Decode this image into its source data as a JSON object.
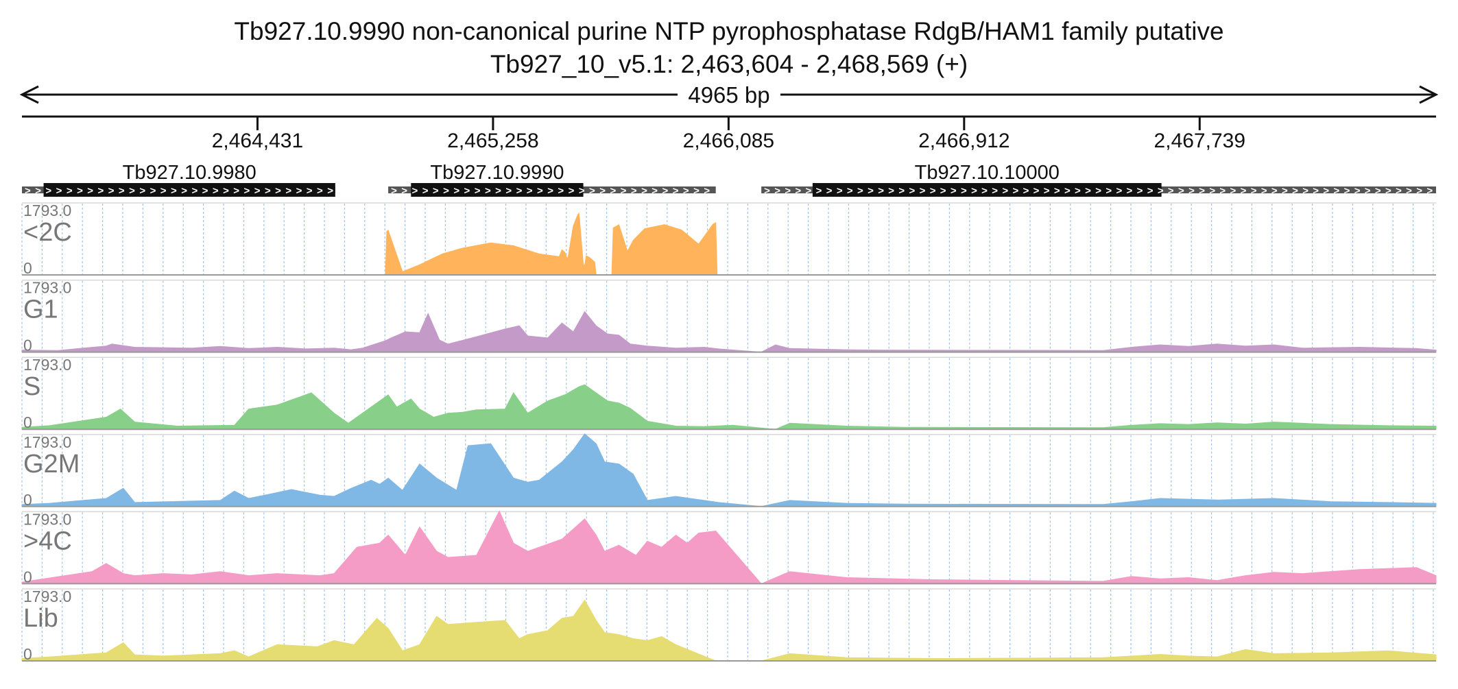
{
  "header": {
    "title": "Tb927.10.9990  non-canonical purine NTP pyrophosphatase  RdgB/HAM1 family  putative",
    "location": "Tb927_10_v5.1: 2,463,604 - 2,468,569 (+)",
    "span_label": "4965 bp"
  },
  "chart_data": {
    "type": "area",
    "title": "Tb927.10.9990  non-canonical purine NTP pyrophosphatase  RdgB/HAM1 family  putative",
    "subtitle": "Tb927_10_v5.1: 2,463,604 - 2,468,569 (+)",
    "x_range": [
      2463604,
      2468569
    ],
    "x_ticks": [
      2464431,
      2465258,
      2466085,
      2466912,
      2467739
    ],
    "x_tick_labels": [
      "2,464,431",
      "2,465,258",
      "2,466,085",
      "2,466,912",
      "2,467,739"
    ],
    "y_range": [
      0,
      1793.0
    ],
    "y_max_label": "1793.0",
    "y_min_label": "0",
    "genes": [
      {
        "name": "Tb927.10.9980",
        "start": 2463604,
        "end": 2464704,
        "cds_start": 2463680,
        "cds_end": 2464704,
        "strand": "+"
      },
      {
        "name": "Tb927.10.9990",
        "start": 2464890,
        "end": 2466040,
        "cds_start": 2464970,
        "cds_end": 2465575,
        "strand": "+"
      },
      {
        "name": "Tb927.10.10000",
        "start": 2466200,
        "end": 2468569,
        "cds_start": 2466380,
        "cds_end": 2467605,
        "strand": "+"
      }
    ],
    "series": [
      {
        "name": "<2C",
        "color": "#ffb45c",
        "x": [
          2463604,
          2464880,
          2464885,
          2464890,
          2464940,
          2465000,
          2465080,
          2465150,
          2465250,
          2465330,
          2465420,
          2465490,
          2465500,
          2465510,
          2465520,
          2465540,
          2465555,
          2465560,
          2465575,
          2465580,
          2465585,
          2465595,
          2465615,
          2465620,
          2465675,
          2465680,
          2465700,
          2465730,
          2465750,
          2465790,
          2465860,
          2465920,
          2465980,
          2466030,
          2466040,
          2466045,
          2468569
        ],
        "y": [
          0,
          0,
          1080,
          1100,
          80,
          250,
          520,
          660,
          790,
          720,
          520,
          450,
          620,
          560,
          380,
          1210,
          1480,
          1520,
          260,
          230,
          470,
          440,
          320,
          0,
          0,
          1160,
          1240,
          580,
          850,
          1140,
          1240,
          1110,
          760,
          1250,
          1290,
          0,
          0
        ]
      },
      {
        "name": "G1",
        "color": "#c49ac9",
        "x": [
          2463604,
          2463730,
          2463900,
          2463920,
          2464000,
          2464200,
          2464300,
          2464400,
          2464500,
          2464600,
          2464700,
          2464760,
          2464800,
          2464880,
          2464900,
          2464950,
          2465000,
          2465030,
          2465070,
          2465100,
          2465200,
          2465300,
          2465350,
          2465380,
          2465450,
          2465500,
          2465540,
          2465580,
          2465620,
          2465660,
          2465700,
          2465740,
          2465800,
          2465900,
          2466000,
          2466050,
          2466200,
          2466250,
          2466300,
          2466500,
          2466600,
          2467400,
          2467500,
          2467600,
          2467700,
          2467800,
          2467900,
          2468000,
          2468100,
          2468300,
          2468500,
          2468569
        ],
        "y": [
          50,
          40,
          150,
          200,
          120,
          100,
          140,
          90,
          120,
          80,
          100,
          60,
          100,
          280,
          350,
          500,
          480,
          950,
          300,
          200,
          380,
          570,
          650,
          400,
          350,
          720,
          500,
          1000,
          650,
          450,
          420,
          200,
          150,
          100,
          120,
          80,
          0,
          180,
          90,
          60,
          50,
          40,
          120,
          180,
          140,
          200,
          150,
          180,
          100,
          120,
          90,
          50
        ]
      },
      {
        "name": "S",
        "color": "#88d089",
        "x": [
          2463604,
          2463700,
          2463900,
          2463950,
          2464000,
          2464150,
          2464350,
          2464400,
          2464500,
          2464620,
          2464700,
          2464750,
          2464860,
          2464890,
          2464920,
          2464970,
          2465000,
          2465050,
          2465100,
          2465150,
          2465200,
          2465300,
          2465330,
          2465380,
          2465450,
          2465510,
          2465560,
          2465580,
          2465620,
          2465660,
          2465700,
          2465740,
          2465800,
          2465900,
          2466000,
          2466100,
          2466250,
          2466300,
          2466500,
          2466700,
          2467400,
          2467500,
          2467600,
          2467700,
          2467800,
          2467900,
          2468000,
          2468200,
          2468400,
          2468569
        ],
        "y": [
          50,
          90,
          300,
          500,
          180,
          80,
          100,
          500,
          600,
          900,
          400,
          150,
          700,
          850,
          550,
          750,
          500,
          300,
          400,
          420,
          480,
          500,
          900,
          400,
          700,
          850,
          1050,
          1100,
          900,
          700,
          650,
          520,
          200,
          80,
          70,
          100,
          0,
          150,
          80,
          50,
          40,
          100,
          140,
          120,
          160,
          130,
          180,
          120,
          90,
          80
        ]
      },
      {
        "name": "G2M",
        "color": "#7fb7e5",
        "x": [
          2463604,
          2463700,
          2463900,
          2463960,
          2464000,
          2464300,
          2464350,
          2464400,
          2464470,
          2464550,
          2464650,
          2464700,
          2464760,
          2464830,
          2464860,
          2464890,
          2464940,
          2465000,
          2465060,
          2465130,
          2465170,
          2465250,
          2465330,
          2465380,
          2465420,
          2465500,
          2465540,
          2465580,
          2465620,
          2465650,
          2465700,
          2465750,
          2465800,
          2465900,
          2466000,
          2466050,
          2466200,
          2466300,
          2466500,
          2466700,
          2467400,
          2467500,
          2467600,
          2467800,
          2468000,
          2468200,
          2468400,
          2468569
        ],
        "y": [
          50,
          80,
          200,
          450,
          100,
          150,
          380,
          200,
          300,
          420,
          280,
          250,
          450,
          650,
          550,
          700,
          400,
          1050,
          700,
          400,
          1500,
          1550,
          700,
          600,
          650,
          1100,
          1400,
          1800,
          1550,
          1100,
          1050,
          800,
          150,
          250,
          150,
          100,
          0,
          150,
          80,
          60,
          50,
          120,
          200,
          160,
          200,
          120,
          100,
          80
        ]
      },
      {
        "name": ">4C",
        "color": "#f59cc6",
        "x": [
          2463604,
          2463850,
          2463900,
          2463960,
          2464000,
          2464100,
          2464200,
          2464300,
          2464400,
          2464500,
          2464650,
          2464700,
          2464780,
          2464860,
          2464890,
          2464950,
          2465000,
          2465060,
          2465100,
          2465200,
          2465280,
          2465330,
          2465380,
          2465420,
          2465500,
          2465540,
          2465580,
          2465620,
          2465650,
          2465700,
          2465760,
          2465800,
          2465850,
          2465900,
          2465940,
          2465980,
          2466040,
          2466200,
          2466300,
          2466500,
          2466800,
          2467400,
          2467500,
          2467600,
          2467700,
          2467800,
          2467900,
          2468000,
          2468100,
          2468300,
          2468500,
          2468569
        ],
        "y": [
          40,
          300,
          500,
          250,
          200,
          250,
          220,
          300,
          200,
          250,
          200,
          250,
          900,
          1000,
          1200,
          700,
          1400,
          800,
          650,
          700,
          1800,
          1000,
          800,
          900,
          1100,
          1350,
          1600,
          1200,
          800,
          950,
          700,
          1050,
          900,
          1200,
          1000,
          1250,
          1300,
          0,
          300,
          150,
          100,
          60,
          180,
          120,
          150,
          80,
          200,
          280,
          250,
          350,
          400,
          200
        ]
      },
      {
        "name": "Lib",
        "color": "#e5dc72",
        "x": [
          2463604,
          2463700,
          2463900,
          2463960,
          2464000,
          2464100,
          2464300,
          2464350,
          2464400,
          2464500,
          2464640,
          2464700,
          2464770,
          2464850,
          2464890,
          2464940,
          2465000,
          2465060,
          2465100,
          2465200,
          2465300,
          2465350,
          2465380,
          2465450,
          2465500,
          2465540,
          2465580,
          2465620,
          2465650,
          2465700,
          2465750,
          2465800,
          2465850,
          2465900,
          2466040,
          2466200,
          2466300,
          2466500,
          2466800,
          2467400,
          2467500,
          2467600,
          2467700,
          2467800,
          2467900,
          2468000,
          2468200,
          2468400,
          2468569
        ],
        "y": [
          60,
          100,
          200,
          450,
          150,
          120,
          180,
          250,
          100,
          400,
          350,
          500,
          400,
          1050,
          800,
          250,
          400,
          1100,
          900,
          950,
          1000,
          550,
          650,
          750,
          1050,
          1100,
          1500,
          1000,
          700,
          650,
          550,
          500,
          600,
          400,
          0,
          0,
          180,
          80,
          60,
          80,
          120,
          160,
          120,
          100,
          280,
          180,
          200,
          250,
          150
        ]
      }
    ]
  }
}
